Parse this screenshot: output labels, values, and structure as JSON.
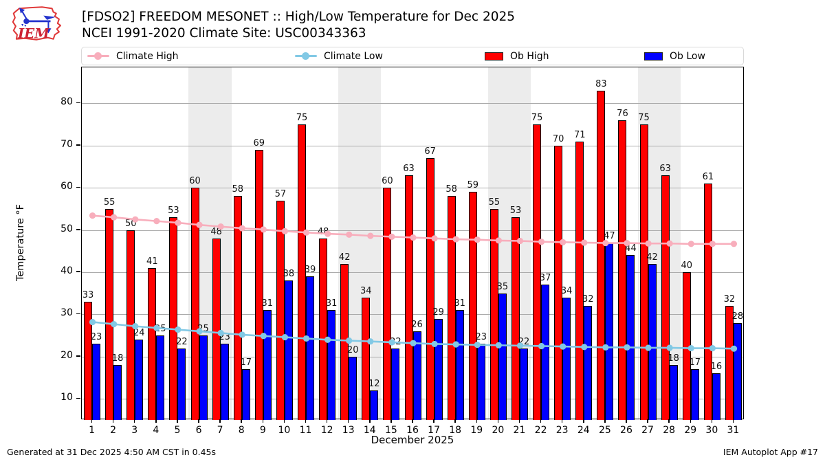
{
  "header": {
    "title": "[FDSO2] FREEDOM MESONET :: High/Low Temperature for Dec 2025",
    "subtitle": "NCEI 1991-2020 Climate Site: USC00343363",
    "logo_text": "IEM"
  },
  "legend": {
    "items": [
      {
        "label": "Climate High",
        "type": "line",
        "color": "#f8aebc"
      },
      {
        "label": "Climate Low",
        "type": "line",
        "color": "#82c9e5"
      },
      {
        "label": "Ob High",
        "type": "bar",
        "color": "#ff0000"
      },
      {
        "label": "Ob Low",
        "type": "bar",
        "color": "#0000ff"
      }
    ]
  },
  "footer": {
    "left": "Generated at 31 Dec 2025 4:50 AM CST in 0.45s",
    "right": "IEM Autoplot App #17"
  },
  "chart_data": {
    "type": "bar",
    "title": "[FDSO2] FREEDOM MESONET :: High/Low Temperature for Dec 2025",
    "subtitle": "NCEI 1991-2020 Climate Site: USC00343363",
    "xlabel": "December 2025",
    "ylabel": "Temperature °F",
    "ylim": [
      5,
      88.5
    ],
    "yticks": [
      10,
      20,
      30,
      40,
      50,
      60,
      70,
      80
    ],
    "grid": true,
    "legend_position": "top",
    "x": [
      1,
      2,
      3,
      4,
      5,
      6,
      7,
      8,
      9,
      10,
      11,
      12,
      13,
      14,
      15,
      16,
      17,
      18,
      19,
      20,
      21,
      22,
      23,
      24,
      25,
      26,
      27,
      28,
      29,
      30,
      31
    ],
    "weekend_days": [
      6,
      7,
      13,
      14,
      20,
      21,
      27,
      28
    ],
    "series": [
      {
        "name": "Ob High",
        "type": "bar",
        "color": "#ff0000",
        "labeled": true,
        "values": [
          33,
          55,
          50,
          41,
          53,
          60,
          48,
          58,
          69,
          57,
          75,
          48,
          42,
          34,
          60,
          63,
          67,
          58,
          59,
          55,
          53,
          75,
          70,
          71,
          83,
          76,
          75,
          63,
          40,
          61,
          32
        ]
      },
      {
        "name": "Ob Low",
        "type": "bar",
        "color": "#0000ff",
        "labeled": true,
        "values": [
          23,
          18,
          24,
          25,
          22,
          25,
          23,
          17,
          31,
          38,
          39,
          31,
          20,
          12,
          22,
          26,
          29,
          31,
          23,
          35,
          22,
          37,
          34,
          32,
          47,
          44,
          42,
          18,
          17,
          16,
          28
        ]
      },
      {
        "name": "Climate High",
        "type": "line",
        "color": "#f8aebc",
        "values": [
          53.4,
          53.0,
          52.5,
          52.1,
          51.7,
          51.2,
          50.8,
          50.4,
          50.1,
          49.7,
          49.4,
          49.1,
          48.9,
          48.6,
          48.4,
          48.2,
          48.0,
          47.8,
          47.7,
          47.5,
          47.4,
          47.2,
          47.1,
          47.0,
          46.9,
          46.9,
          46.8,
          46.8,
          46.7,
          46.7,
          46.7
        ]
      },
      {
        "name": "Climate Low",
        "type": "line",
        "color": "#82c9e5",
        "values": [
          28.2,
          27.7,
          27.2,
          26.8,
          26.4,
          26.0,
          25.6,
          25.2,
          24.9,
          24.6,
          24.3,
          24.0,
          23.8,
          23.6,
          23.4,
          23.2,
          23.0,
          22.9,
          22.8,
          22.7,
          22.6,
          22.5,
          22.4,
          22.3,
          22.2,
          22.2,
          22.1,
          22.1,
          22.0,
          22.0,
          21.9
        ]
      }
    ]
  }
}
